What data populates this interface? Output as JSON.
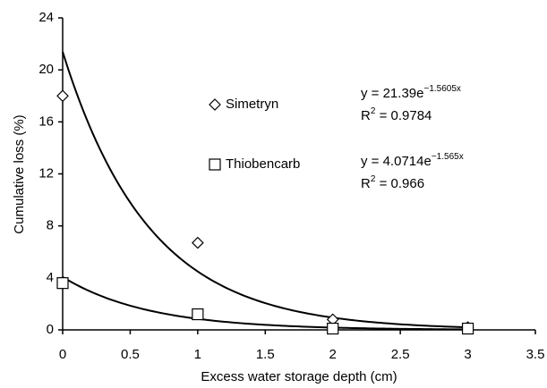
{
  "chart_data": {
    "type": "scatter",
    "x_label": "Excess water storage depth (cm)",
    "y_label": "Cumulative loss (%)",
    "xlim": [
      0,
      3.5
    ],
    "xticks": [
      0,
      0.5,
      1,
      1.5,
      2,
      2.5,
      3,
      3.5
    ],
    "ylim": [
      0,
      24
    ],
    "yticks": [
      0,
      4,
      8,
      12,
      16,
      20,
      24
    ],
    "grid": false,
    "series": [
      {
        "name": "Simetryn",
        "marker": "diamond",
        "color": "#000000",
        "x": [
          0,
          1,
          2,
          3
        ],
        "values": [
          18,
          6.7,
          0.8,
          0.2
        ],
        "trend": {
          "a": 21.39,
          "b": -1.5605
        },
        "equation": "y = 21.39e",
        "equation_exponent": "−1.5605x",
        "r2_symbol": "R",
        "r2_sup": "2",
        "r2_text": " = 0.9784"
      },
      {
        "name": "Thiobencarb",
        "marker": "square",
        "color": "#000000",
        "x": [
          0,
          1,
          2,
          3
        ],
        "values": [
          3.6,
          1.2,
          0.1,
          0.1
        ],
        "trend": {
          "a": 4.0714,
          "b": -1.565
        },
        "equation": "y = 4.0714e",
        "equation_exponent": "−1.565x",
        "r2_symbol": "R",
        "r2_sup": "2",
        "r2_text": " = 0.966"
      }
    ]
  }
}
